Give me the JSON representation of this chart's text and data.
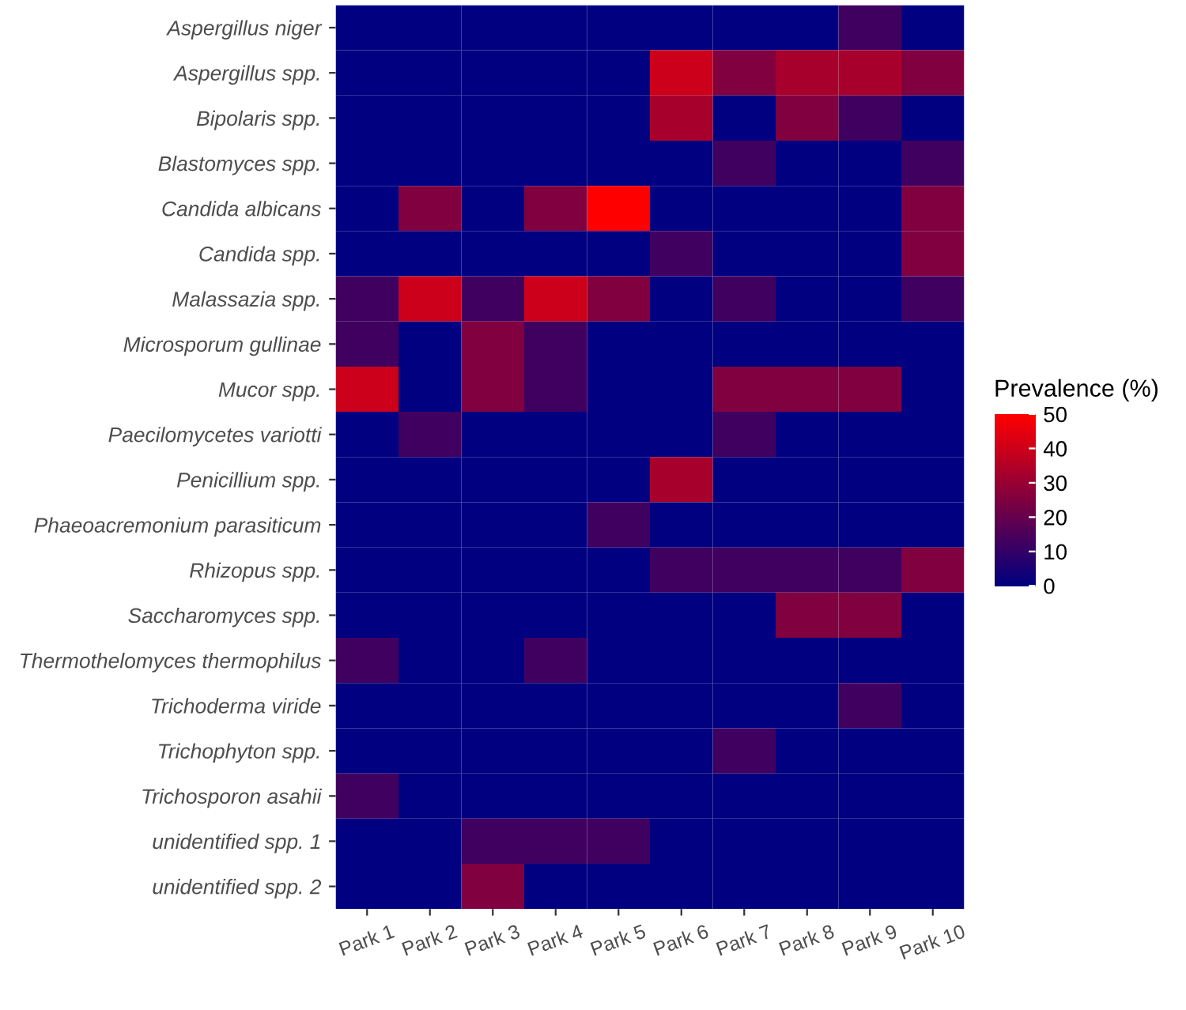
{
  "chart_data": {
    "type": "heatmap",
    "clabel": "Prevalence (%)",
    "categories": [
      "Park 1",
      "Park 2",
      "Park 3",
      "Park 4",
      "Park 5",
      "Park 6",
      "Park 7",
      "Park 8",
      "Park 9",
      "Park 10"
    ],
    "y_categories": [
      "Aspergillus niger",
      "Aspergillus spp.",
      "Bipolaris spp.",
      "Blastomyces spp.",
      "Candida albicans",
      "Candida spp.",
      "Malassazia spp.",
      "Microsporum gullinae",
      "Mucor spp.",
      "Paecilomycetes variotti",
      "Penicillium spp.",
      "Phaeoacremonium parasiticum",
      "Rhizopus spp.",
      "Saccharomyces spp.",
      "Thermothelomyces thermophilus",
      "Trichoderma viride",
      "Trichophyton spp.",
      "Trichosporon asahii",
      "unidentified spp. 1",
      "unidentified spp. 2"
    ],
    "cells": [
      [
        0,
        0,
        0,
        0,
        0,
        0,
        0,
        0,
        12.5,
        0
      ],
      [
        0,
        0,
        0,
        0,
        0,
        40,
        25,
        33,
        33,
        25
      ],
      [
        0,
        0,
        0,
        0,
        0,
        33,
        0,
        25,
        12.5,
        0
      ],
      [
        0,
        0,
        0,
        0,
        0,
        0,
        12.5,
        0,
        0,
        12.5
      ],
      [
        0,
        25,
        0,
        25,
        50,
        0,
        0,
        0,
        0,
        25
      ],
      [
        0,
        0,
        0,
        0,
        0,
        12.5,
        0,
        0,
        0,
        25
      ],
      [
        12.5,
        40,
        12.5,
        40,
        25,
        0,
        12.5,
        0,
        0,
        12.5
      ],
      [
        12.5,
        0,
        25,
        12.5,
        0,
        0,
        0,
        0,
        0,
        0
      ],
      [
        40,
        0,
        25,
        12.5,
        0,
        0,
        25,
        25,
        25,
        0
      ],
      [
        0,
        12.5,
        0,
        0,
        0,
        0,
        12.5,
        0,
        0,
        0
      ],
      [
        0,
        0,
        0,
        0,
        0,
        33,
        0,
        0,
        0,
        0
      ],
      [
        0,
        0,
        0,
        0,
        12.5,
        0,
        0,
        0,
        0,
        0
      ],
      [
        0,
        0,
        0,
        0,
        0,
        12.5,
        12.5,
        12.5,
        12.5,
        25
      ],
      [
        0,
        0,
        0,
        0,
        0,
        0,
        0,
        25,
        25,
        0
      ],
      [
        12.5,
        0,
        0,
        12.5,
        0,
        0,
        0,
        0,
        0,
        0
      ],
      [
        0,
        0,
        0,
        0,
        0,
        0,
        0,
        0,
        12.5,
        0
      ],
      [
        0,
        0,
        0,
        0,
        0,
        0,
        12.5,
        0,
        0,
        0
      ],
      [
        12.5,
        0,
        0,
        0,
        0,
        0,
        0,
        0,
        0,
        0
      ],
      [
        0,
        0,
        12.5,
        12.5,
        12.5,
        0,
        0,
        0,
        0,
        0
      ],
      [
        0,
        0,
        25,
        0,
        0,
        0,
        0,
        0,
        0,
        0
      ]
    ],
    "colors": [
      "#000080",
      "#ff0000"
    ],
    "clim": [
      0,
      50
    ],
    "cticks": [
      0,
      10,
      20,
      30,
      40,
      50
    ]
  }
}
